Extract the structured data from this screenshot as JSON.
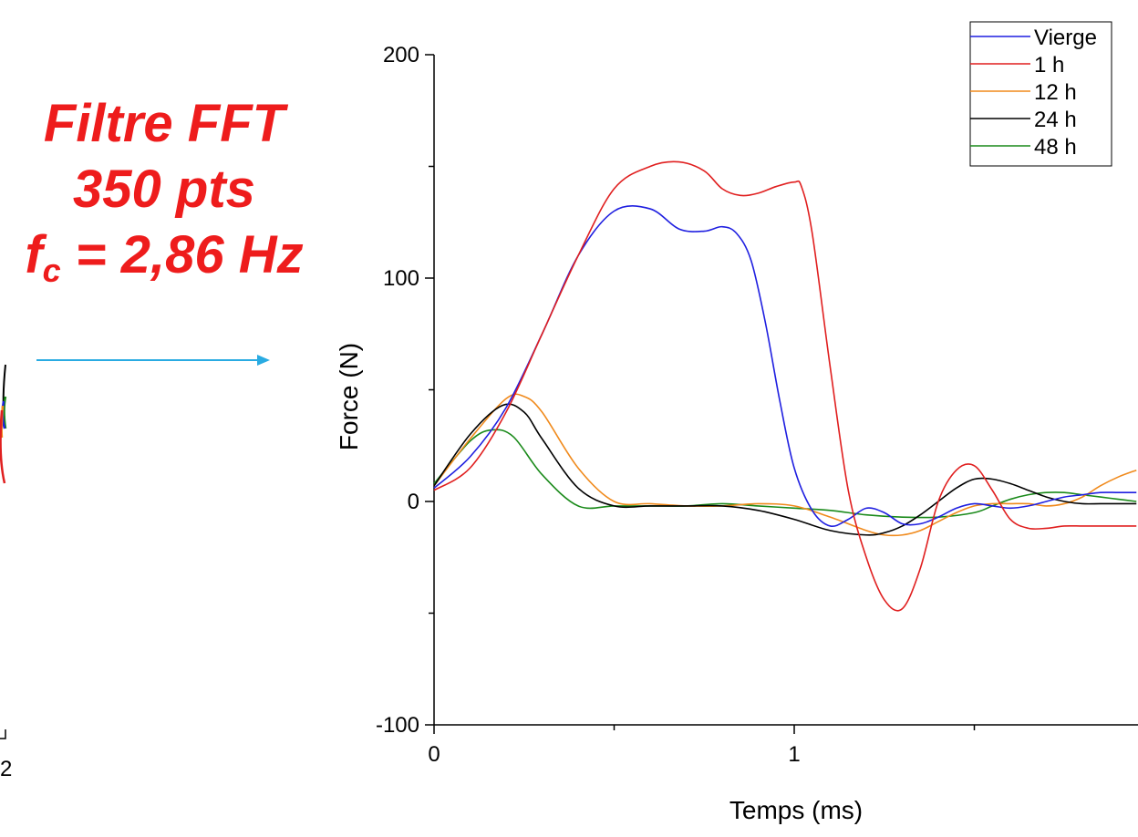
{
  "annotation": {
    "line1": "Filtre FFT",
    "line2": "350 pts",
    "line3_prefix": "f",
    "line3_sub": "c",
    "line3_suffix": " = 2,86 Hz"
  },
  "left_fragment": {
    "tick_label": "2"
  },
  "arrow_color": "#29abe2",
  "chart_data": {
    "type": "line",
    "xlabel": "Temps (ms)",
    "ylabel": "Force (N)",
    "xlim": [
      0,
      1.95
    ],
    "ylim": [
      -100,
      200
    ],
    "x_ticks": [
      0,
      1
    ],
    "y_ticks": [
      -100,
      0,
      100,
      200
    ],
    "grid": false,
    "legend_position": "top-right",
    "series": [
      {
        "name": "Vierge",
        "color": "#1f1fe0",
        "x": [
          0,
          0.1,
          0.2,
          0.3,
          0.4,
          0.5,
          0.6,
          0.68,
          0.75,
          0.8,
          0.84,
          0.88,
          0.92,
          0.96,
          1.0,
          1.05,
          1.1,
          1.15,
          1.2,
          1.25,
          1.3,
          1.35,
          1.4,
          1.45,
          1.5,
          1.55,
          1.6,
          1.65,
          1.7,
          1.75,
          1.8,
          1.85,
          1.9,
          1.95
        ],
        "y": [
          6,
          20,
          42,
          75,
          110,
          130,
          131,
          122,
          121,
          123,
          120,
          108,
          80,
          45,
          15,
          -4,
          -11,
          -8,
          -3,
          -5,
          -10,
          -10,
          -7,
          -3,
          -1,
          -2,
          -3,
          -2,
          0,
          2,
          3,
          4,
          4,
          4
        ]
      },
      {
        "name": "1 h",
        "color": "#e01f1f",
        "x": [
          0,
          0.1,
          0.2,
          0.3,
          0.4,
          0.5,
          0.6,
          0.68,
          0.75,
          0.8,
          0.85,
          0.9,
          0.95,
          1.0,
          1.02,
          1.05,
          1.1,
          1.15,
          1.2,
          1.25,
          1.3,
          1.35,
          1.4,
          1.45,
          1.5,
          1.55,
          1.6,
          1.65,
          1.7,
          1.75,
          1.8,
          1.85,
          1.9,
          1.95
        ],
        "y": [
          5,
          15,
          40,
          75,
          110,
          140,
          150,
          152,
          148,
          140,
          137,
          138,
          141,
          143,
          141,
          120,
          60,
          5,
          -25,
          -44,
          -48,
          -30,
          0,
          14,
          16,
          5,
          -8,
          -12,
          -12,
          -11,
          -11,
          -11,
          -11,
          -11
        ]
      },
      {
        "name": "12 h",
        "color": "#f08a1c",
        "x": [
          0,
          0.1,
          0.2,
          0.25,
          0.3,
          0.4,
          0.5,
          0.6,
          0.7,
          0.8,
          0.9,
          1.0,
          1.1,
          1.2,
          1.25,
          1.3,
          1.35,
          1.4,
          1.45,
          1.5,
          1.55,
          1.6,
          1.65,
          1.7,
          1.75,
          1.8,
          1.85,
          1.9,
          1.95
        ],
        "y": [
          7,
          28,
          46,
          47,
          40,
          15,
          0,
          -1,
          -2,
          -2,
          -1,
          -2,
          -7,
          -13,
          -15,
          -15,
          -13,
          -9,
          -5,
          -2,
          -1,
          -1,
          -1,
          -2,
          -1,
          2,
          7,
          11,
          14
        ]
      },
      {
        "name": "24 h",
        "color": "#000000",
        "x": [
          0,
          0.1,
          0.19,
          0.25,
          0.3,
          0.4,
          0.5,
          0.6,
          0.7,
          0.8,
          0.9,
          1.0,
          1.1,
          1.2,
          1.25,
          1.3,
          1.35,
          1.4,
          1.45,
          1.5,
          1.55,
          1.6,
          1.65,
          1.7,
          1.75,
          1.8,
          1.85,
          1.9,
          1.95
        ],
        "y": [
          7,
          30,
          43,
          40,
          28,
          6,
          -2,
          -2,
          -2,
          -2,
          -4,
          -8,
          -13,
          -15,
          -14,
          -11,
          -6,
          0,
          6,
          10,
          10,
          8,
          5,
          2,
          0,
          -1,
          -1,
          -1,
          -1
        ]
      },
      {
        "name": "48 h",
        "color": "#1a8a1a",
        "x": [
          0,
          0.1,
          0.16,
          0.22,
          0.3,
          0.4,
          0.5,
          0.6,
          0.7,
          0.8,
          0.9,
          1.0,
          1.1,
          1.2,
          1.3,
          1.4,
          1.5,
          1.55,
          1.6,
          1.65,
          1.7,
          1.75,
          1.8,
          1.85,
          1.9,
          1.95
        ],
        "y": [
          8,
          27,
          32,
          29,
          12,
          -2,
          -2,
          -2,
          -2,
          -1,
          -2,
          -3,
          -4,
          -6,
          -7,
          -7,
          -5,
          -2,
          1,
          3,
          4,
          4,
          3,
          2,
          1,
          0
        ]
      }
    ]
  }
}
